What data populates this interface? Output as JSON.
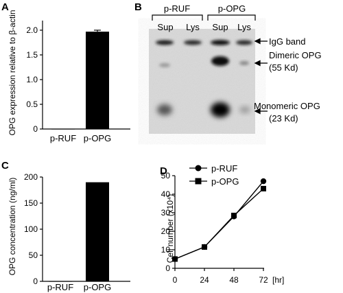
{
  "panels": {
    "a": {
      "label": "A"
    },
    "b": {
      "label": "B"
    },
    "c": {
      "label": "C"
    },
    "d": {
      "label": "D"
    }
  },
  "chart_data": [
    {
      "id": "A",
      "type": "bar",
      "categories": [
        "p-RUF",
        "p-OPG"
      ],
      "values": [
        0,
        1.97
      ],
      "error": [
        0,
        0.03
      ],
      "ylabel": "OPG expression relative to β-actin",
      "ylim": [
        0,
        2.0
      ],
      "yticks": [
        "0",
        "0.5",
        "1.0",
        "1.5",
        "2.0"
      ],
      "ytick_values": [
        0,
        0.5,
        1.0,
        1.5,
        2.0
      ],
      "bar_color": "#000000"
    },
    {
      "id": "C",
      "type": "bar",
      "categories": [
        "p-RUF",
        "p-OPG"
      ],
      "values": [
        0,
        190
      ],
      "ylabel": "OPG concentration (ng/ml)",
      "ylim": [
        0,
        200
      ],
      "yticks": [
        "0",
        "50",
        "100",
        "150",
        "200"
      ],
      "ytick_values": [
        0,
        50,
        100,
        150,
        200
      ],
      "bar_color": "#000000"
    },
    {
      "id": "D",
      "type": "line",
      "x": [
        0,
        24,
        48,
        72
      ],
      "xticks": [
        "0",
        "24",
        "48",
        "72"
      ],
      "xunit": "[hr]",
      "ylabel": "Cell number (x10⁴)",
      "ylim": [
        0,
        50
      ],
      "yticks": [
        "0",
        "10",
        "20",
        "30",
        "40",
        "50"
      ],
      "ytick_values": [
        0,
        10,
        20,
        30,
        40,
        50
      ],
      "xlim": [
        0,
        72
      ],
      "legend_position": "top-left",
      "series": [
        {
          "name": "p-RUF",
          "marker": "circle",
          "values": [
            5,
            11.5,
            28,
            47
          ]
        },
        {
          "name": "p-OPG",
          "marker": "square",
          "values": [
            5,
            11.5,
            28.5,
            43
          ]
        }
      ]
    }
  ],
  "blot": {
    "groups": [
      "p-RUF",
      "p-OPG"
    ],
    "lanes": [
      "Sup",
      "Lys",
      "Sup",
      "Lys"
    ],
    "annotations": {
      "igg": "IgG band",
      "dimeric": "Dimeric OPG",
      "dimeric_kd": "(55 Kd)",
      "monomeric": "Monomeric OPG",
      "monomeric_kd": "(23 Kd)"
    }
  }
}
